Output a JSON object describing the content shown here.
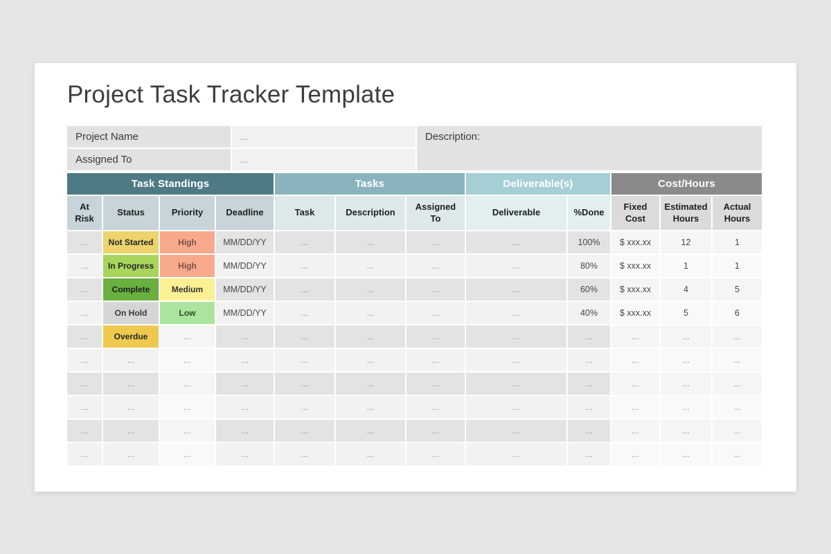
{
  "page": {
    "title": "Project Task Tracker Template"
  },
  "info": {
    "fields": [
      {
        "label": "Project Name",
        "value": "..."
      },
      {
        "label": "Assigned To",
        "value": "..."
      }
    ],
    "description_label": "Description:"
  },
  "table": {
    "groups": [
      {
        "label": "Task Standings",
        "span": 4,
        "bg": "#4e7a86"
      },
      {
        "label": "Tasks",
        "span": 3,
        "bg": "#8ab4bd"
      },
      {
        "label": "Deliverable(s)",
        "span": 2,
        "bg": "#a5ced5"
      },
      {
        "label": "Cost/Hours",
        "span": 3,
        "bg": "#8a8a8a"
      }
    ],
    "subheader_bgs": [
      "#c7d5da",
      "#dce8ea",
      "#e1eff1",
      "#dbdbdb"
    ],
    "columns": [
      {
        "label": "At Risk",
        "group": 0
      },
      {
        "label": "Status",
        "group": 0
      },
      {
        "label": "Priority",
        "group": 0
      },
      {
        "label": "Deadline",
        "group": 0
      },
      {
        "label": "Task",
        "group": 1
      },
      {
        "label": "Description",
        "group": 1
      },
      {
        "label": "Assigned To",
        "group": 1
      },
      {
        "label": "Deliverable",
        "group": 2
      },
      {
        "label": "%Done",
        "group": 2
      },
      {
        "label": "Fixed Cost",
        "group": 3
      },
      {
        "label": "Estimated Hours",
        "group": 3
      },
      {
        "label": "Actual Hours",
        "group": 3
      }
    ],
    "light_columns": [
      2,
      9,
      10,
      11
    ],
    "rows": [
      [
        "...",
        {
          "t": "Not Started",
          "bg": "#ecd36c",
          "fg": "#262626"
        },
        {
          "t": "High",
          "bg": "#f8a98c",
          "fg": "#7a5148"
        },
        "MM/DD/YY",
        "...",
        "...",
        "...",
        "...",
        "100%",
        "$ xxx.xx",
        "12",
        "1"
      ],
      [
        "...",
        {
          "t": "In Progress",
          "bg": "#a8d55c",
          "fg": "#262626"
        },
        {
          "t": "High",
          "bg": "#f8a98c",
          "fg": "#7a5148"
        },
        "MM/DD/YY",
        "...",
        "...",
        "...",
        "...",
        "80%",
        "$ xxx.xx",
        "1",
        "1"
      ],
      [
        "...",
        {
          "t": "Complete",
          "bg": "#69b03f",
          "fg": "#1c1c1c"
        },
        {
          "t": "Medium",
          "bg": "#fbf193",
          "fg": "#333333"
        },
        "MM/DD/YY",
        "...",
        "...",
        "...",
        "...",
        "60%",
        "$ xxx.xx",
        "4",
        "5"
      ],
      [
        "...",
        {
          "t": "On Hold",
          "bg": "#d5d5d5",
          "fg": "#3a3a3a"
        },
        {
          "t": "Low",
          "bg": "#abe49d",
          "fg": "#2f4a2b"
        },
        "MM/DD/YY",
        "...",
        "...",
        "...",
        "...",
        "40%",
        "$ xxx.xx",
        "5",
        "6"
      ],
      [
        "...",
        {
          "t": "Overdue",
          "bg": "#eec94e",
          "fg": "#262626"
        },
        "...",
        "...",
        "...",
        "...",
        "...",
        "...",
        "...",
        "...",
        "...",
        "..."
      ],
      [
        "...",
        "...",
        "...",
        "...",
        "...",
        "...",
        "...",
        "...",
        "...",
        "...",
        "...",
        "..."
      ],
      [
        "...",
        "...",
        "...",
        "...",
        "...",
        "...",
        "...",
        "...",
        "...",
        "...",
        "...",
        "..."
      ],
      [
        "...",
        "...",
        "...",
        "...",
        "...",
        "...",
        "...",
        "...",
        "...",
        "...",
        "...",
        "..."
      ],
      [
        "...",
        "...",
        "...",
        "...",
        "...",
        "...",
        "...",
        "...",
        "...",
        "...",
        "...",
        "..."
      ],
      [
        "...",
        "...",
        "...",
        "...",
        "...",
        "...",
        "...",
        "...",
        "...",
        "...",
        "...",
        "..."
      ]
    ]
  },
  "colors": {
    "stripe_odd": "#e3e3e3",
    "stripe_even": "#f2f2f2",
    "light_odd": "#f5f5f5",
    "light_even": "#f9f9f9",
    "dots_text": "#8c8c8c",
    "value_text": "#474747"
  }
}
